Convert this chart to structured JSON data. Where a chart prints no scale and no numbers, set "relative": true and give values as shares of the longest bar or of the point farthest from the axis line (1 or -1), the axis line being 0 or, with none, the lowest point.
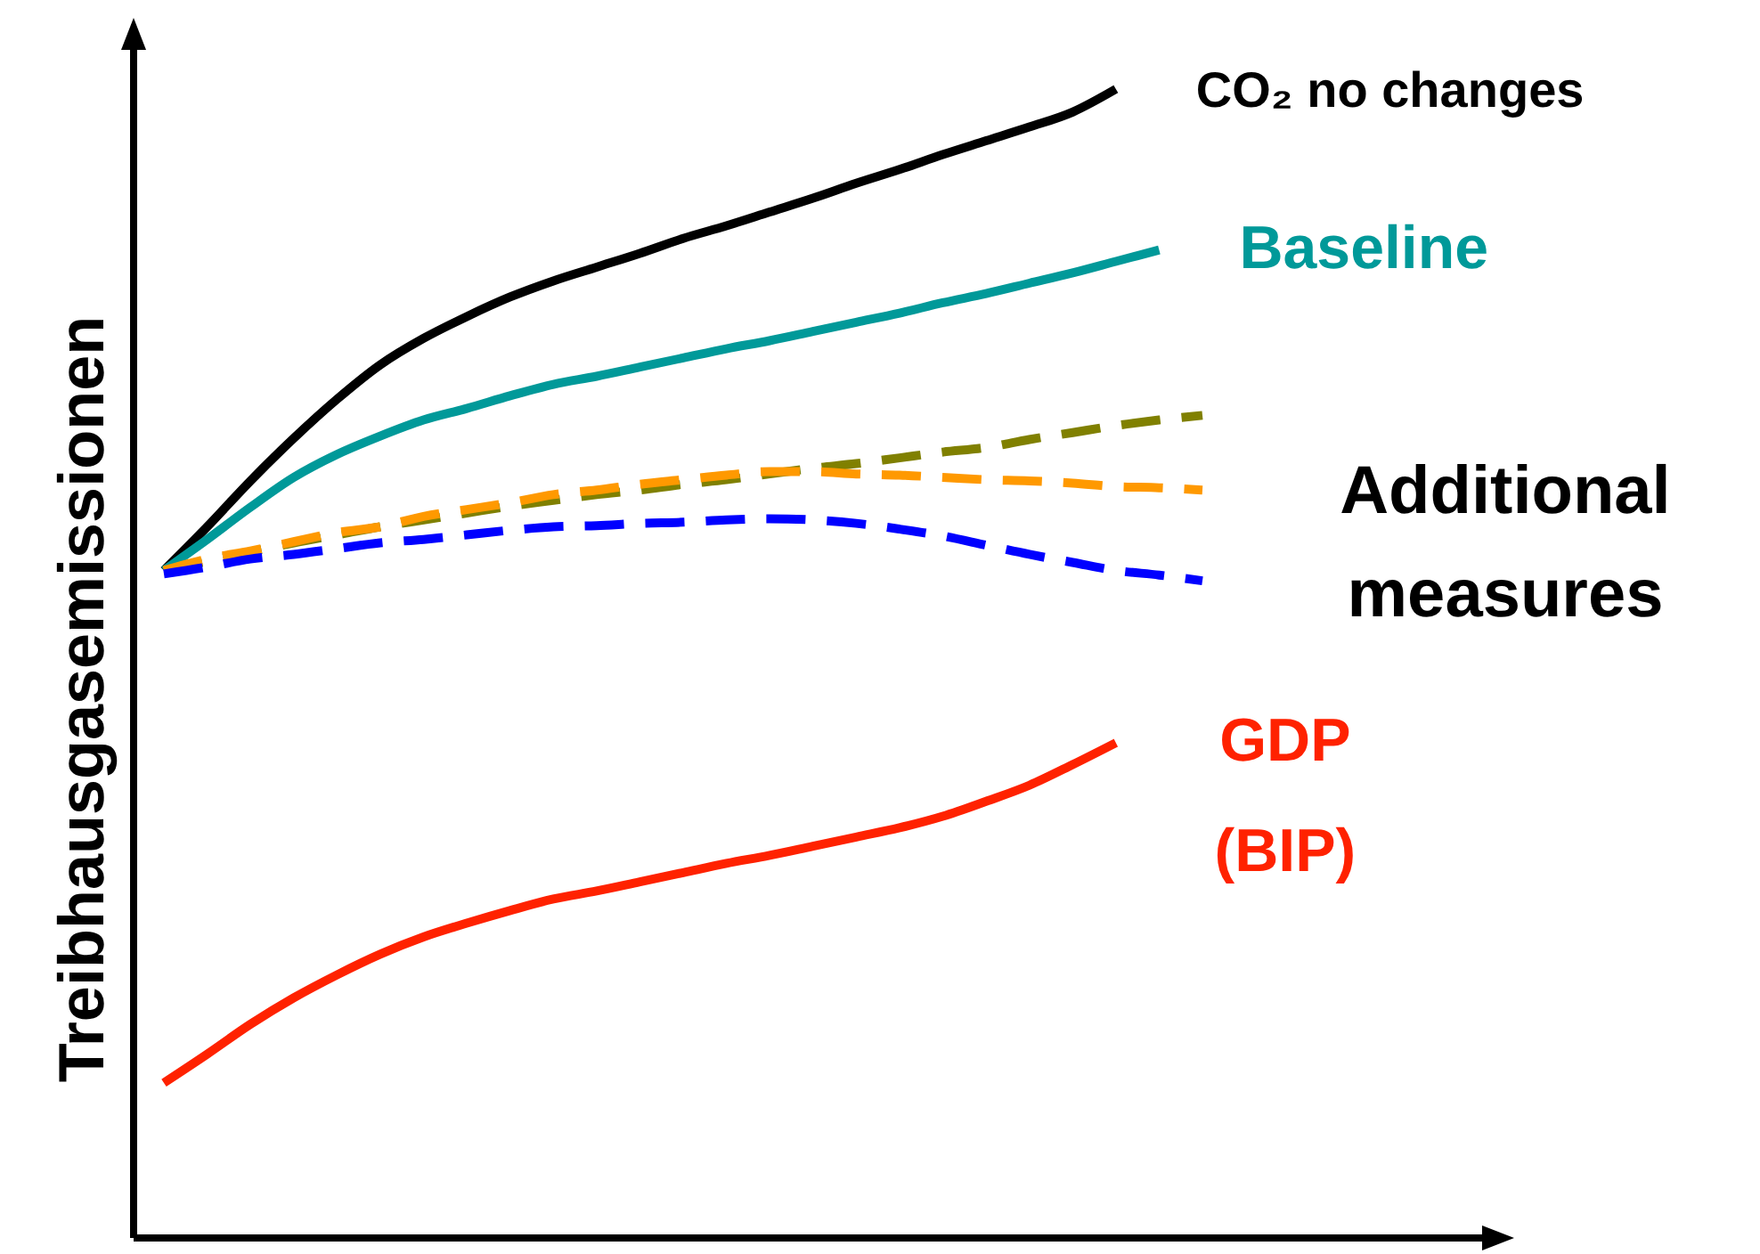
{
  "chart_data": {
    "type": "line",
    "relative": true,
    "ylabel": "Treibhausgasemissionen",
    "categories": [
      null,
      null,
      null,
      null,
      null,
      null,
      null,
      null,
      null,
      null,
      null,
      null,
      null,
      null,
      null,
      null,
      null,
      null,
      null,
      null,
      null,
      null,
      null,
      null,
      null
    ],
    "series": [
      {
        "name": "CO₂ no changes",
        "color": "#000000",
        "line_style": "solid",
        "values": [
          0.581,
          0.619,
          0.659,
          0.696,
          0.73,
          0.76,
          0.783,
          0.802,
          0.819,
          0.833,
          0.845,
          0.857,
          0.87,
          0.881,
          0.893,
          0.905,
          0.918,
          0.93,
          0.943,
          0.955,
          0.967,
          0.98,
          1,
          null,
          null
        ]
      },
      {
        "name": "Baseline",
        "color": "#009999",
        "line_style": "solid",
        "values": [
          0.581,
          0.608,
          0.636,
          0.662,
          0.682,
          0.698,
          0.712,
          0.722,
          0.733,
          0.743,
          0.75,
          0.758,
          0.766,
          0.774,
          0.781,
          0.789,
          0.797,
          0.805,
          0.814,
          0.822,
          0.831,
          0.84,
          0.85,
          0.86,
          null
        ]
      },
      {
        "color": "#808000",
        "line_style": "dashed",
        "values": [
          0.581,
          0.589,
          0.597,
          0.605,
          0.612,
          0.619,
          0.625,
          0.631,
          0.637,
          0.642,
          0.647,
          0.651,
          0.656,
          0.66,
          0.665,
          0.67,
          0.674,
          0.679,
          0.684,
          0.688,
          0.695,
          0.701,
          0.707,
          0.712,
          0.716
        ]
      },
      {
        "color": "#ff9900",
        "line_style": "dashed",
        "values": [
          0.581,
          0.591,
          0.598,
          0.606,
          0.614,
          0.619,
          0.628,
          0.634,
          0.64,
          0.647,
          0.651,
          0.656,
          0.66,
          0.664,
          0.667,
          0.667,
          0.665,
          0.664,
          0.662,
          0.66,
          0.659,
          0.657,
          0.654,
          0.653,
          0.651
        ]
      },
      {
        "color": "#0000ff",
        "line_style": "dashed",
        "values": [
          0.578,
          0.584,
          0.591,
          0.595,
          0.6,
          0.605,
          0.608,
          0.612,
          0.616,
          0.619,
          0.62,
          0.622,
          0.623,
          0.625,
          0.626,
          0.625,
          0.622,
          0.617,
          0.611,
          0.603,
          0.595,
          0.588,
          0.581,
          0.577,
          0.572
        ]
      },
      {
        "name": "GDP (BIP)",
        "color": "#ff2200",
        "line_style": "solid",
        "values": [
          0.135,
          0.16,
          0.186,
          0.209,
          0.229,
          0.247,
          0.262,
          0.274,
          0.285,
          0.295,
          0.302,
          0.31,
          0.318,
          0.326,
          0.333,
          0.341,
          0.349,
          0.357,
          0.367,
          0.38,
          0.394,
          0.412,
          0.431,
          null,
          null
        ]
      }
    ],
    "annotations": [
      "Additional measures"
    ]
  }
}
